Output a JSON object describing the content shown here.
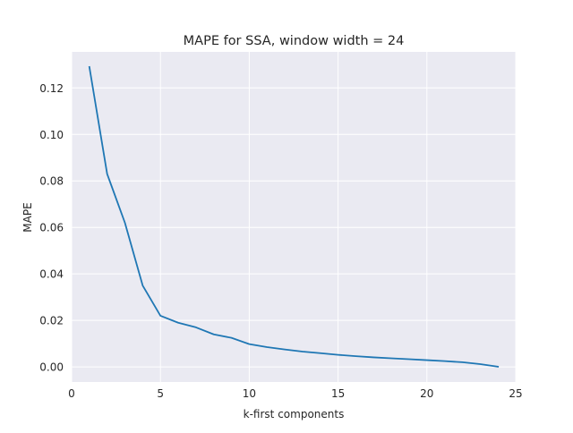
{
  "chart_data": {
    "type": "line",
    "title": "MAPE for SSA, window width = 24",
    "xlabel": "k-first components",
    "ylabel": "MAPE",
    "xlim": [
      0,
      25
    ],
    "ylim": [
      -0.0065,
      0.1355
    ],
    "xticks": [
      0,
      5,
      10,
      15,
      20,
      25
    ],
    "xtick_labels": [
      "0",
      "5",
      "10",
      "15",
      "20",
      "25"
    ],
    "yticks": [
      0.0,
      0.02,
      0.04,
      0.06,
      0.08,
      0.1,
      0.12
    ],
    "ytick_labels": [
      "0.00",
      "0.02",
      "0.04",
      "0.06",
      "0.08",
      "0.10",
      "0.12"
    ],
    "grid": true,
    "colors": {
      "background": "#eaeaf2",
      "grid": "#ffffff",
      "line": "#1f77b4"
    },
    "series": [
      {
        "x": [
          1,
          2,
          3,
          4,
          5,
          6,
          7,
          8,
          9,
          10,
          11,
          12,
          13,
          14,
          15,
          16,
          17,
          18,
          19,
          20,
          21,
          22,
          23,
          24
        ],
        "values": [
          0.129,
          0.083,
          0.062,
          0.035,
          0.022,
          0.019,
          0.017,
          0.014,
          0.0125,
          0.0098,
          0.0085,
          0.0075,
          0.0066,
          0.0059,
          0.0052,
          0.0046,
          0.0041,
          0.0037,
          0.0033,
          0.0029,
          0.0025,
          0.002,
          0.0012,
          0.0001
        ]
      }
    ]
  }
}
